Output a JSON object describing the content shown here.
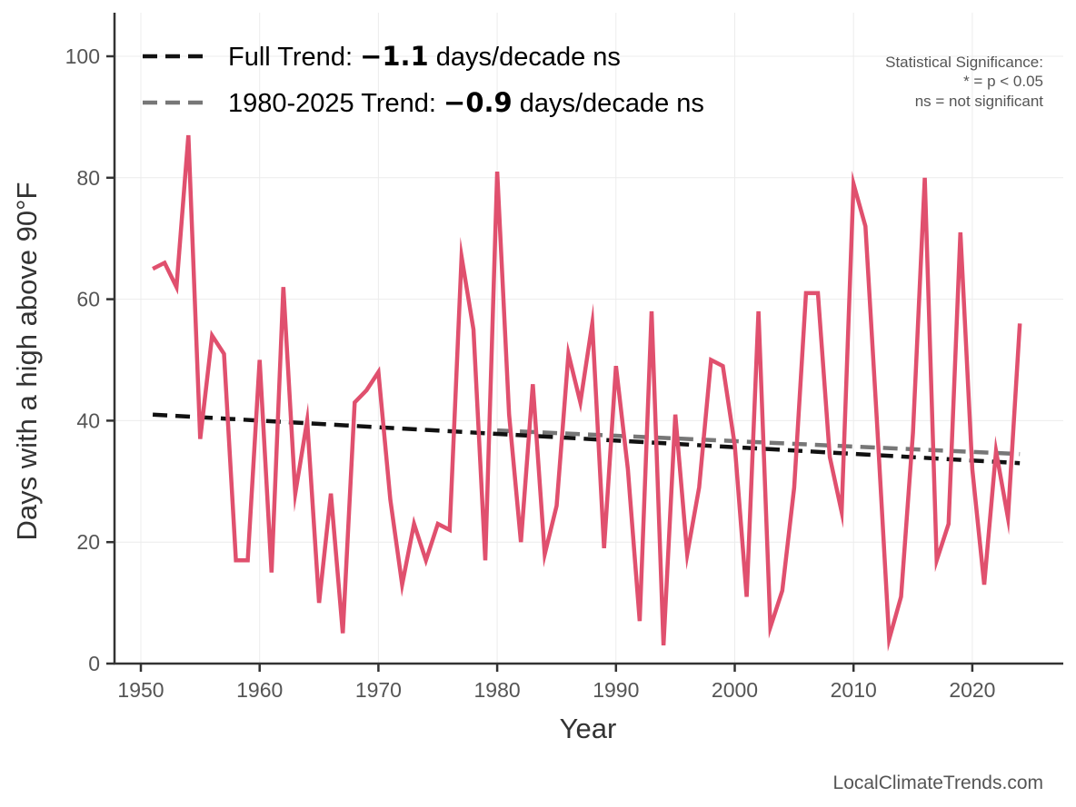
{
  "chart_data": {
    "type": "line",
    "title": "",
    "xlabel": "Year",
    "ylabel": "Days with a high above 90°F",
    "xlim": [
      1947.8,
      2028
    ],
    "ylim": [
      0,
      107
    ],
    "x_ticks": [
      1950,
      1960,
      1970,
      1980,
      1990,
      2000,
      2010,
      2020
    ],
    "y_ticks": [
      0,
      20,
      40,
      60,
      80,
      100
    ],
    "grid": true,
    "series": [
      {
        "name": "Days above 90°F",
        "color": "#e0506e",
        "x": [
          1951,
          1952,
          1953,
          1954,
          1955,
          1956,
          1957,
          1958,
          1959,
          1960,
          1961,
          1962,
          1963,
          1964,
          1965,
          1966,
          1967,
          1968,
          1969,
          1970,
          1971,
          1972,
          1973,
          1974,
          1975,
          1976,
          1977,
          1978,
          1979,
          1980,
          1981,
          1982,
          1983,
          1984,
          1985,
          1986,
          1987,
          1988,
          1989,
          1990,
          1991,
          1992,
          1993,
          1994,
          1995,
          1996,
          1997,
          1998,
          1999,
          2000,
          2001,
          2002,
          2003,
          2004,
          2005,
          2006,
          2007,
          2008,
          2009,
          2010,
          2011,
          2012,
          2013,
          2014,
          2015,
          2016,
          2017,
          2018,
          2019,
          2020,
          2021,
          2022,
          2023,
          2024
        ],
        "values": [
          65,
          66,
          62,
          87,
          37,
          54,
          51,
          17,
          17,
          50,
          15,
          62,
          28,
          40,
          10,
          28,
          5,
          43,
          45,
          48,
          27,
          13,
          23,
          17,
          23,
          22,
          67,
          55,
          17,
          81,
          41,
          20,
          46,
          18,
          26,
          51,
          43,
          56,
          19,
          49,
          32,
          7,
          58,
          3,
          41,
          18,
          29,
          50,
          49,
          36,
          11,
          58,
          6,
          12,
          29,
          61,
          61,
          34,
          25,
          79,
          72,
          39,
          4,
          11,
          38,
          80,
          17,
          23,
          71,
          32,
          13,
          35,
          24,
          56
        ]
      }
    ],
    "trends": [
      {
        "name": "Full Trend",
        "color": "#111111",
        "x": [
          1951,
          2024
        ],
        "values": [
          41,
          33
        ]
      },
      {
        "name": "1980-2025 Trend",
        "color": "#777777",
        "x": [
          1980,
          2024
        ],
        "values": [
          38.4,
          34.5
        ]
      }
    ],
    "legend": {
      "placement": "top-left",
      "entries": [
        {
          "prefix": "Full Trend: ",
          "value": "−1.1",
          "suffix": " days/decade ns"
        },
        {
          "prefix": "1980-2025 Trend: ",
          "value": "−0.9",
          "suffix": " days/decade ns"
        }
      ]
    },
    "annotations": {
      "significance": [
        "Statistical Significance:",
        "* = p < 0.05",
        "ns = not significant"
      ],
      "credit": "LocalClimateTrends.com"
    }
  }
}
